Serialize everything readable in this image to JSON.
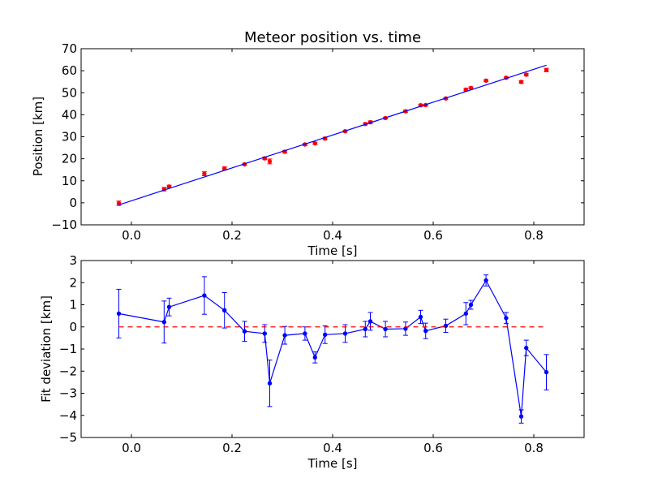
{
  "chart_data": [
    {
      "type": "scatter",
      "title": "Meteor position vs. time",
      "xlabel": "Time [s]",
      "ylabel": "Position [km]",
      "xlim": [
        -0.1,
        0.9
      ],
      "ylim": [
        -10,
        70
      ],
      "xticks": [
        0.0,
        0.2,
        0.4,
        0.6,
        0.8
      ],
      "xtick_labels": [
        "0.0",
        "0.2",
        "0.4",
        "0.6",
        "0.8"
      ],
      "yticks": [
        -10,
        0,
        10,
        20,
        30,
        40,
        50,
        60,
        70
      ],
      "ytick_labels": [
        "−10",
        "0",
        "10",
        "20",
        "30",
        "40",
        "50",
        "60",
        "70"
      ],
      "grid": false,
      "series": [
        {
          "kind": "errorbar-points",
          "color": "#ff0000",
          "x": [
            -0.025,
            0.065,
            0.075,
            0.145,
            0.185,
            0.225,
            0.265,
            0.275,
            0.305,
            0.345,
            0.365,
            0.385,
            0.425,
            0.465,
            0.475,
            0.505,
            0.545,
            0.575,
            0.585,
            0.625,
            0.665,
            0.675,
            0.705,
            0.745,
            0.775,
            0.785,
            0.825
          ],
          "y": [
            -0.2,
            6.2,
            7.4,
            13.2,
            15.6,
            17.5,
            20.2,
            18.8,
            23.2,
            26.5,
            27.0,
            29.2,
            32.5,
            35.8,
            36.6,
            38.5,
            41.6,
            44.3,
            44.4,
            47.4,
            51.4,
            52.2,
            55.5,
            56.8,
            54.9,
            58.2,
            60.3
          ],
          "yerr": [
            1.0,
            0.8,
            0.6,
            0.9,
            0.7,
            0.5,
            0.6,
            1.1,
            0.6,
            0.5,
            0.5,
            0.6,
            0.4,
            0.5,
            0.6,
            0.4,
            0.5,
            0.5,
            0.4,
            0.4,
            0.6,
            0.5,
            0.4,
            0.4,
            0.6,
            0.5,
            0.8
          ]
        },
        {
          "kind": "line",
          "color": "#0000ff",
          "x": [
            -0.025,
            0.825
          ],
          "y": [
            -0.95,
            62.5
          ]
        }
      ]
    },
    {
      "type": "line",
      "title": "",
      "xlabel": "Time [s]",
      "ylabel": "Fit deviation [km]",
      "xlim": [
        -0.1,
        0.9
      ],
      "ylim": [
        -5,
        3
      ],
      "xticks": [
        0.0,
        0.2,
        0.4,
        0.6,
        0.8
      ],
      "xtick_labels": [
        "0.0",
        "0.2",
        "0.4",
        "0.6",
        "0.8"
      ],
      "yticks": [
        -5,
        -4,
        -3,
        -2,
        -1,
        0,
        1,
        2,
        3
      ],
      "ytick_labels": [
        "−5",
        "−4",
        "−3",
        "−2",
        "−1",
        "0",
        "1",
        "2",
        "3"
      ],
      "grid": false,
      "series": [
        {
          "kind": "errorbar-line",
          "color": "#0000ff",
          "x": [
            -0.025,
            0.065,
            0.075,
            0.145,
            0.185,
            0.225,
            0.265,
            0.275,
            0.305,
            0.345,
            0.365,
            0.385,
            0.425,
            0.465,
            0.475,
            0.505,
            0.545,
            0.575,
            0.585,
            0.625,
            0.665,
            0.675,
            0.705,
            0.745,
            0.775,
            0.785,
            0.825
          ],
          "y": [
            0.6,
            0.22,
            0.9,
            1.42,
            0.75,
            -0.2,
            -0.3,
            -2.55,
            -0.38,
            -0.3,
            -1.38,
            -0.35,
            -0.3,
            -0.1,
            0.25,
            -0.1,
            -0.08,
            0.45,
            -0.18,
            0.05,
            0.6,
            1.0,
            2.1,
            0.4,
            -4.05,
            -0.95,
            -2.05
          ],
          "yerr": [
            1.1,
            0.95,
            0.4,
            0.85,
            0.8,
            0.45,
            0.4,
            1.05,
            0.4,
            0.3,
            0.25,
            0.4,
            0.4,
            0.35,
            0.4,
            0.35,
            0.3,
            0.3,
            0.35,
            0.3,
            0.5,
            0.2,
            0.25,
            0.25,
            0.3,
            0.35,
            0.8
          ]
        },
        {
          "kind": "reference-line",
          "style": "dashed",
          "color": "#ff0000",
          "x": [
            -0.025,
            0.825
          ],
          "y": [
            0,
            0
          ]
        }
      ]
    }
  ]
}
